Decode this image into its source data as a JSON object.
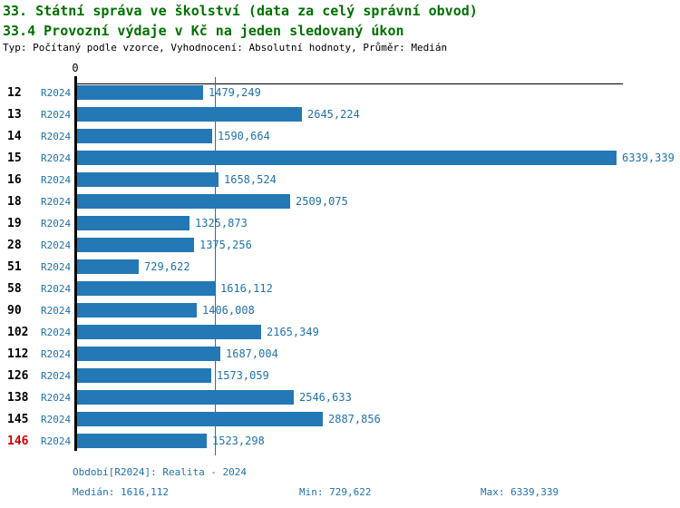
{
  "header": {
    "title": "33. Státní správa ve školství (data za celý správní obvod)",
    "subtitle": "33.4 Provozní výdaje v Kč na jeden sledovaný úkon",
    "meta": "Typ: Počítaný podle vzorce, Vyhodnocení: Absolutní hodnoty, Průměr: Medián"
  },
  "chart_data": {
    "type": "bar",
    "orientation": "horizontal",
    "series_label": "R2024",
    "axis_zero_label": "0",
    "xlim": [
      0,
      6339.339
    ],
    "median_value": 1616.112,
    "grid": false,
    "categories": [
      "12",
      "13",
      "14",
      "15",
      "16",
      "18",
      "19",
      "28",
      "51",
      "58",
      "90",
      "102",
      "112",
      "126",
      "138",
      "145",
      "146"
    ],
    "values": [
      1479.249,
      2645.224,
      1590.664,
      6339.339,
      1658.524,
      2509.075,
      1325.873,
      1375.256,
      729.622,
      1616.112,
      1406.008,
      2165.349,
      1687.004,
      1573.059,
      2546.633,
      2887.856,
      1523.298
    ],
    "value_labels": [
      "1479,249",
      "2645,224",
      "1590,664",
      "6339,339",
      "1658,524",
      "2509,075",
      "1325,873",
      "1375,256",
      "729,622",
      "1616,112",
      "1406,008",
      "2165,349",
      "1687,004",
      "1573,059",
      "2546,633",
      "2887,856",
      "1523,298"
    ],
    "highlight_category": "146"
  },
  "footer": {
    "period": "Období[R2024]: Realita - 2024",
    "median": "Medián: 1616,112",
    "min": "Min: 729,622",
    "max": "Max: 6339,339"
  },
  "colors": {
    "title_green": "#007000",
    "bar_blue": "#2378B5",
    "text_blue": "#2173AC",
    "highlight_red": "#CC0000",
    "axis_black": "#000000"
  }
}
